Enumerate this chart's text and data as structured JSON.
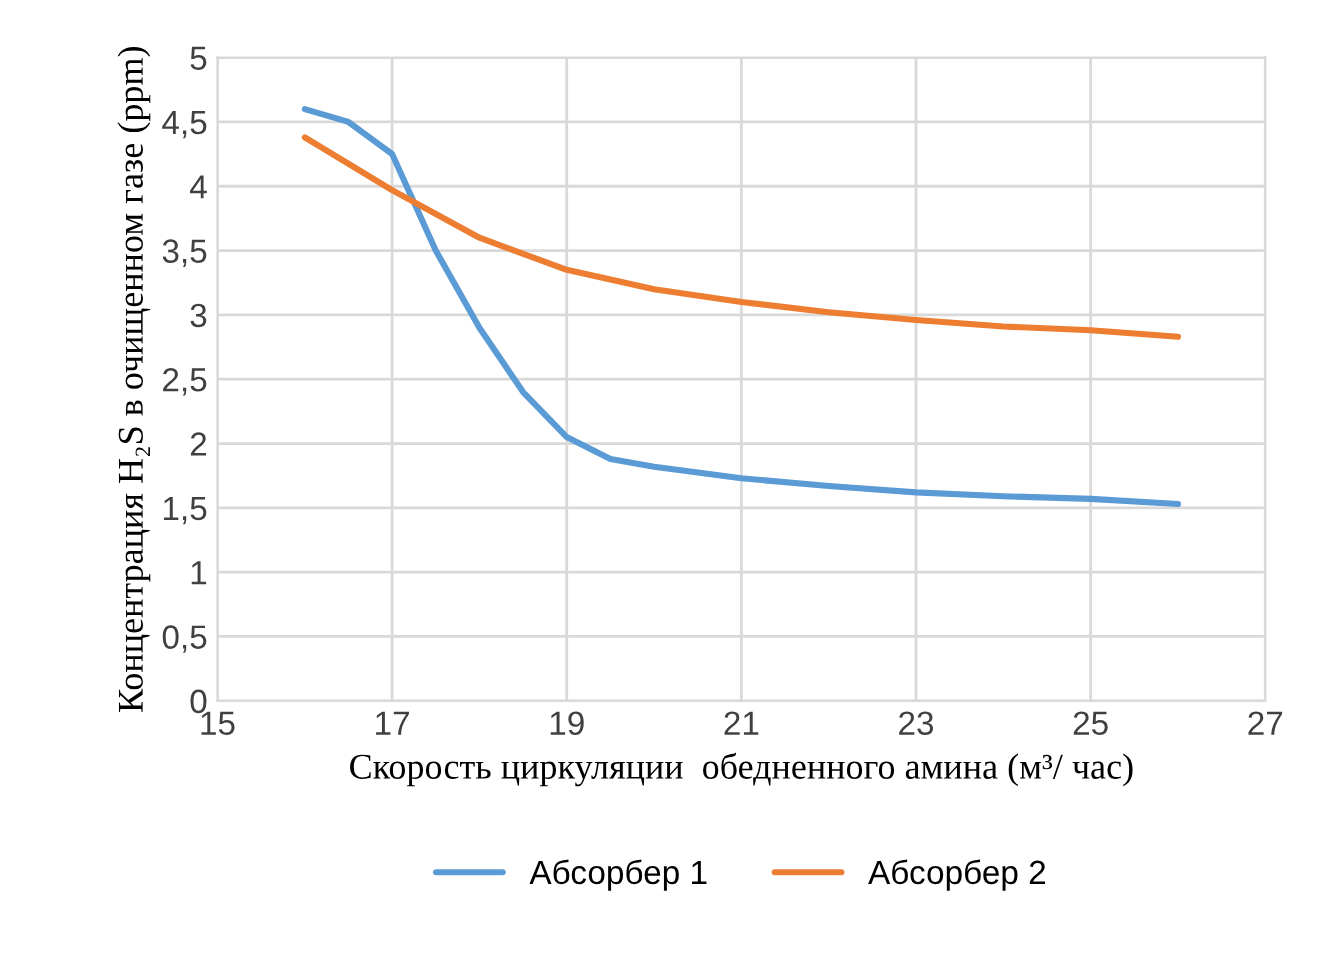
{
  "chart_data": {
    "type": "line",
    "xlabel": "Скорость циркуляции  обедненного амина (м³/ час)",
    "ylabel": "Концентрация H₂S в очищенном газе (ppm)",
    "xlim": [
      15,
      27
    ],
    "xticks": [
      15,
      17,
      19,
      21,
      23,
      25,
      27
    ],
    "ylim": [
      0,
      5
    ],
    "yticks": [
      0,
      {
        "value": 0.5,
        "label": "0,5"
      },
      1,
      {
        "value": 1.5,
        "label": "1,5"
      },
      2,
      {
        "value": 2.5,
        "label": "2,5"
      },
      3,
      {
        "value": 3.5,
        "label": "3,5"
      },
      4,
      {
        "value": 4.5,
        "label": "4,5"
      },
      5
    ],
    "grid": true,
    "legend": "bottom",
    "marker": "none",
    "line_style": "solid",
    "series": [
      {
        "name": "Абсорбер 1",
        "color": "#5b9bd5",
        "x": [
          16,
          16.5,
          17,
          17.5,
          18,
          18.5,
          19,
          19.5,
          20,
          21,
          22,
          23,
          24,
          25,
          26
        ],
        "values": [
          4.6,
          4.5,
          4.25,
          3.5,
          2.9,
          2.4,
          2.05,
          1.88,
          1.82,
          1.73,
          1.67,
          1.62,
          1.59,
          1.57,
          1.53
        ]
      },
      {
        "name": "Абсорбер 2",
        "color": "#ed7d31",
        "x": [
          16,
          17,
          18,
          19,
          20,
          21,
          22,
          23,
          24,
          25,
          26
        ],
        "values": [
          4.38,
          3.97,
          3.6,
          3.35,
          3.2,
          3.1,
          3.02,
          2.96,
          2.91,
          2.88,
          2.83
        ]
      }
    ]
  }
}
